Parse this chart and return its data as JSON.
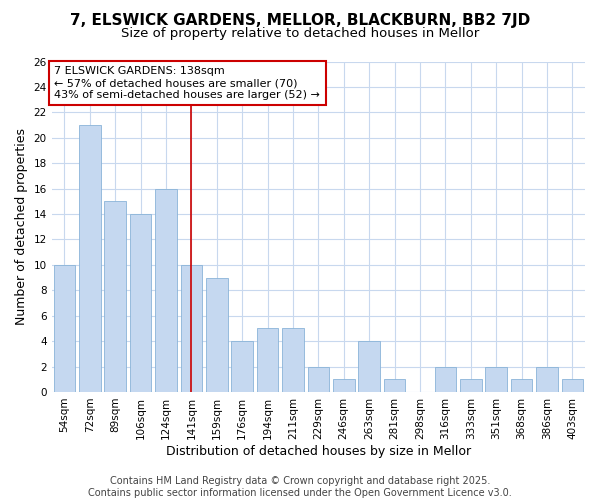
{
  "title_line1": "7, ELSWICK GARDENS, MELLOR, BLACKBURN, BB2 7JD",
  "title_line2": "Size of property relative to detached houses in Mellor",
  "xlabel": "Distribution of detached houses by size in Mellor",
  "ylabel": "Number of detached properties",
  "bar_color": "#c5d8f0",
  "bar_edge_color": "#8ab4d8",
  "plot_bg_color": "#ffffff",
  "fig_bg_color": "#ffffff",
  "grid_color": "#c8d8ee",
  "categories": [
    "54sqm",
    "72sqm",
    "89sqm",
    "106sqm",
    "124sqm",
    "141sqm",
    "159sqm",
    "176sqm",
    "194sqm",
    "211sqm",
    "229sqm",
    "246sqm",
    "263sqm",
    "281sqm",
    "298sqm",
    "316sqm",
    "333sqm",
    "351sqm",
    "368sqm",
    "386sqm",
    "403sqm"
  ],
  "values": [
    10,
    21,
    15,
    14,
    16,
    10,
    9,
    4,
    5,
    5,
    2,
    1,
    4,
    1,
    0,
    2,
    1,
    2,
    1,
    2,
    1
  ],
  "highlight_index": 5,
  "highlight_line_color": "#cc0000",
  "annotation_text": "7 ELSWICK GARDENS: 138sqm\n← 57% of detached houses are smaller (70)\n43% of semi-detached houses are larger (52) →",
  "annotation_box_facecolor": "#ffffff",
  "annotation_box_edgecolor": "#cc0000",
  "ylim": [
    0,
    26
  ],
  "yticks": [
    0,
    2,
    4,
    6,
    8,
    10,
    12,
    14,
    16,
    18,
    20,
    22,
    24,
    26
  ],
  "footnote": "Contains HM Land Registry data © Crown copyright and database right 2025.\nContains public sector information licensed under the Open Government Licence v3.0.",
  "title_fontsize": 11,
  "subtitle_fontsize": 9.5,
  "tick_fontsize": 7.5,
  "axis_label_fontsize": 9,
  "annotation_fontsize": 8,
  "footnote_fontsize": 7
}
